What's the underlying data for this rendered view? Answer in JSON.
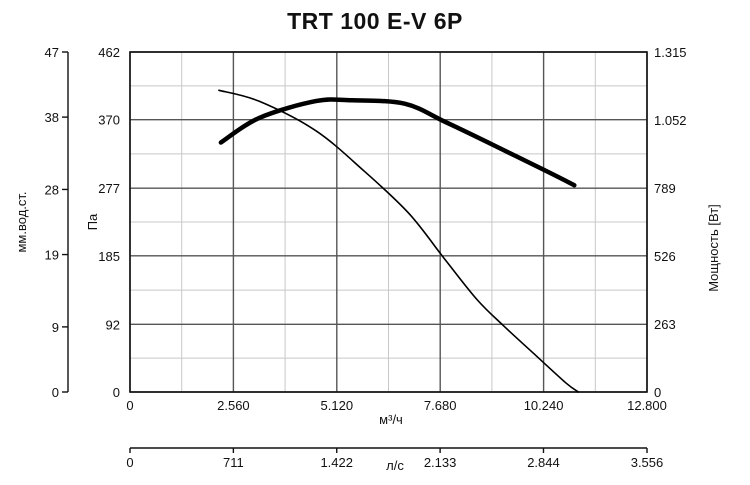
{
  "chart_data": {
    "type": "line",
    "title": "TRT 100 E-V 6P",
    "x_axis": {
      "label": "м³/ч",
      "range": [
        0,
        12800
      ],
      "ticks": [
        0,
        2560,
        5120,
        7680,
        10240,
        12800
      ],
      "tick_labels": [
        "0",
        "2.560",
        "5.120",
        "7.680",
        "10.240",
        "12.800"
      ]
    },
    "x2_axis": {
      "label": "л/с",
      "range": [
        0,
        3556
      ],
      "ticks": [
        0,
        711,
        1422,
        2133,
        2844,
        3556
      ],
      "tick_labels": [
        "0",
        "711",
        "1.422",
        "2.133",
        "2.844",
        "3.556"
      ]
    },
    "y_axis": {
      "label": "Па",
      "range": [
        0,
        462
      ],
      "ticks": [
        0,
        92,
        185,
        277,
        370,
        462
      ],
      "tick_labels": [
        "0",
        "92",
        "185",
        "277",
        "370",
        "462"
      ]
    },
    "y_left_outer": {
      "label": "мм.вод.ст.",
      "range": [
        0,
        47
      ],
      "ticks": [
        0,
        9,
        19,
        28,
        38,
        47
      ],
      "tick_labels": [
        "0",
        "9",
        "19",
        "28",
        "38",
        "47"
      ]
    },
    "y_right": {
      "label": "Мощность [Вт]",
      "range": [
        0,
        1315
      ],
      "ticks": [
        0,
        263,
        526,
        789,
        1052,
        1315
      ],
      "tick_labels": [
        "0",
        "263",
        "526",
        "789",
        "1.052",
        "1.315"
      ]
    },
    "grid": true,
    "series": [
      {
        "axis": "y",
        "color": "#000000",
        "emphasis": "thin",
        "points": [
          [
            2200,
            410
          ],
          [
            3200,
            395
          ],
          [
            4600,
            355
          ],
          [
            5800,
            300
          ],
          [
            6900,
            243
          ],
          [
            7800,
            180
          ],
          [
            8600,
            125
          ],
          [
            9250,
            90
          ],
          [
            10000,
            52
          ],
          [
            10800,
            12
          ],
          [
            11100,
            0
          ]
        ]
      },
      {
        "axis": "y_right",
        "color": "#000000",
        "emphasis": "thick",
        "points": [
          [
            2250,
            965
          ],
          [
            3200,
            1060
          ],
          [
            4600,
            1125
          ],
          [
            5500,
            1128
          ],
          [
            6800,
            1115
          ],
          [
            7800,
            1045
          ],
          [
            9000,
            955
          ],
          [
            10300,
            855
          ],
          [
            11000,
            800
          ]
        ]
      }
    ]
  }
}
